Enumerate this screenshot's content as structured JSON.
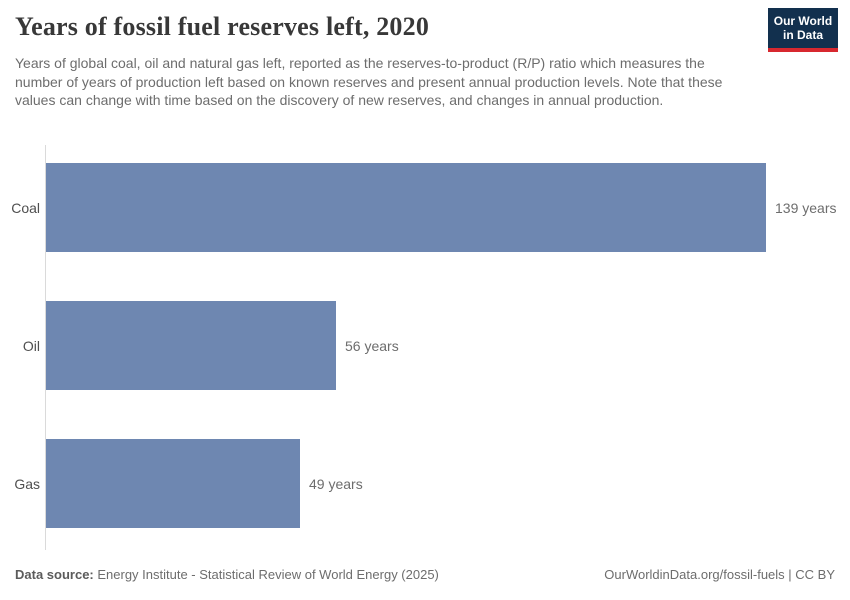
{
  "header": {
    "title": "Years of fossil fuel reserves left, 2020",
    "subtitle": "Years of global coal, oil and natural gas left, reported as the reserves-to-product (R/P) ratio which measures the number of years of production left based on known reserves and present annual production levels. Note that these values can change with time based on the discovery of new reserves, and changes in annual production.",
    "logo": {
      "line1": "Our World",
      "line2": "in Data",
      "bg_color": "#12304e",
      "stripe_color": "#d7282f"
    }
  },
  "chart_data": {
    "type": "bar",
    "orientation": "horizontal",
    "title": "Years of fossil fuel reserves left, 2020",
    "categories": [
      "Coal",
      "Oil",
      "Gas"
    ],
    "values": [
      139,
      56,
      49
    ],
    "value_labels": [
      "139 years",
      "56 years",
      "49 years"
    ],
    "unit": "years",
    "xlim": [
      0,
      139
    ],
    "bar_color": "#6e87b1",
    "grid": false,
    "axis_color": "#dadada",
    "value_label_position": "right-of-bar"
  },
  "footer": {
    "source_label": "Data source:",
    "source_text": " Energy Institute - Statistical Review of World Energy (2025)",
    "rights": "OurWorldinData.org/fossil-fuels | CC BY"
  }
}
